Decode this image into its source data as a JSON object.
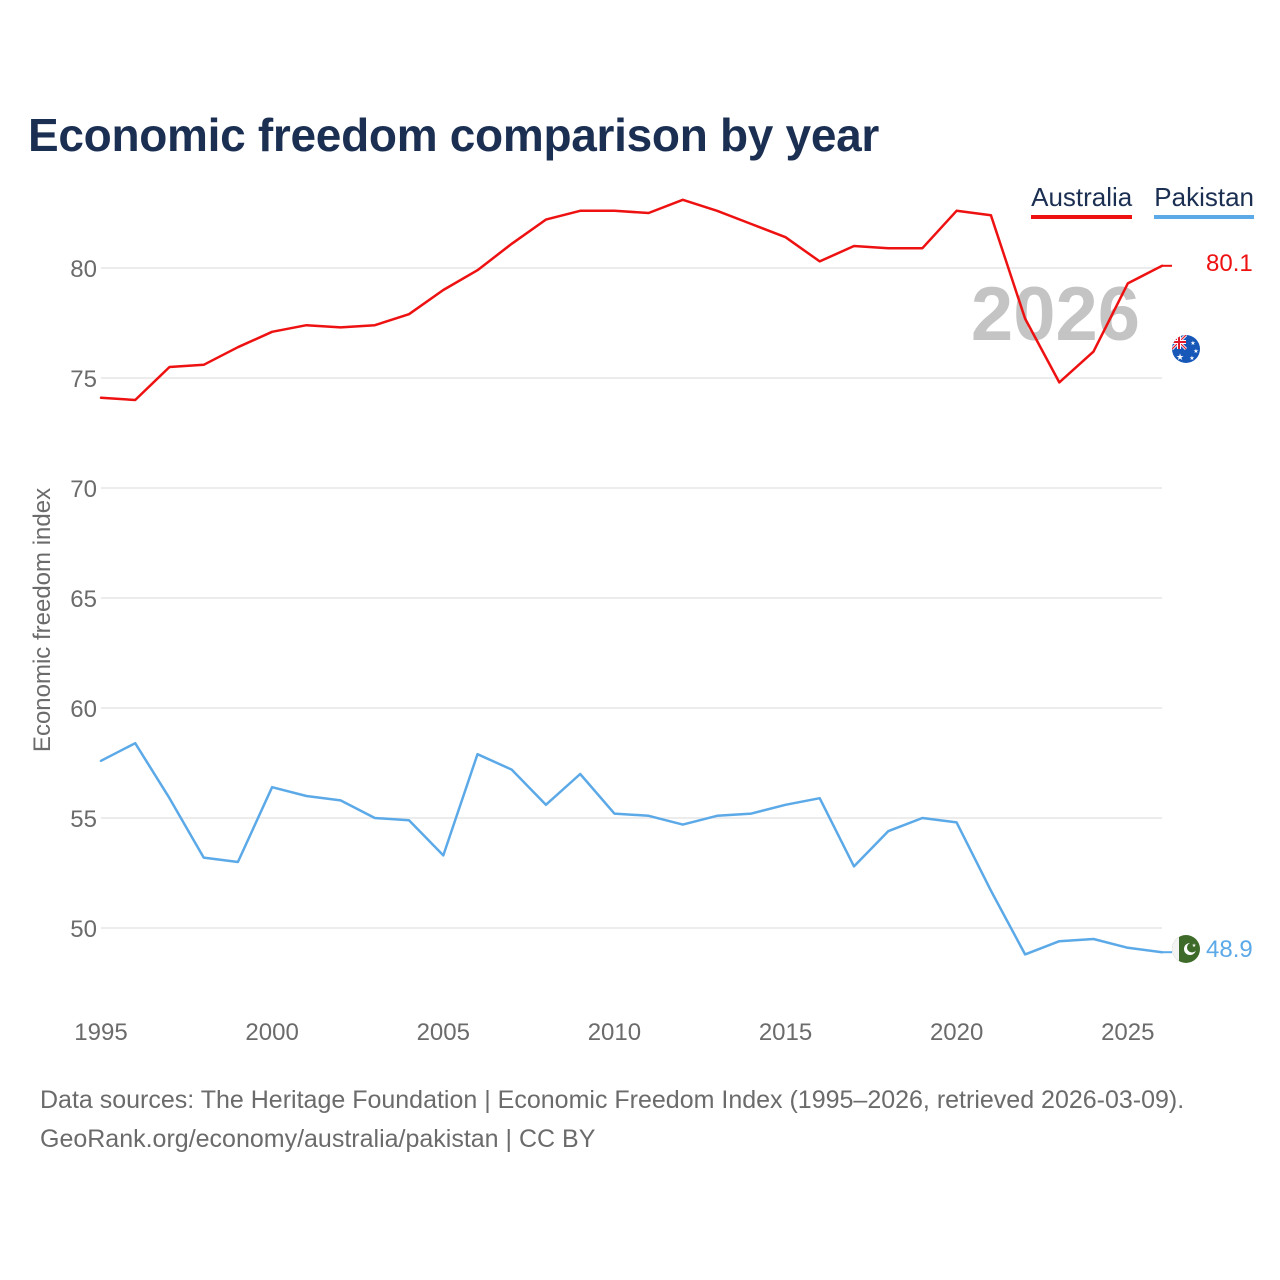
{
  "title": "Economic freedom comparison by year",
  "legend": {
    "items": [
      {
        "label": "Australia",
        "color": "#ee1111"
      },
      {
        "label": "Pakistan",
        "color": "#5ca9e8"
      }
    ]
  },
  "year_watermark": "2026",
  "footer": {
    "sources": "Data sources: The Heritage Foundation | Economic Freedom Index (1995–2026, retrieved 2026-03-09).",
    "credit": "GeoRank.org/economy/australia/pakistan | CC BY"
  },
  "chart_data": {
    "type": "line",
    "title": "Economic freedom comparison by year",
    "xlabel": "",
    "ylabel": "Economic freedom index",
    "xlim": [
      1995,
      2026
    ],
    "ylim": [
      45,
      85
    ],
    "grid": true,
    "legend_position": "top-right",
    "x": [
      1995,
      1996,
      1997,
      1998,
      1999,
      2000,
      2001,
      2002,
      2003,
      2004,
      2005,
      2006,
      2007,
      2008,
      2009,
      2010,
      2011,
      2012,
      2013,
      2014,
      2015,
      2016,
      2017,
      2018,
      2019,
      2020,
      2021,
      2022,
      2023,
      2024,
      2025,
      2026
    ],
    "x_ticks": [
      "1995",
      "2000",
      "2005",
      "2010",
      "2015",
      "2020",
      "2025"
    ],
    "y_ticks": [
      "50",
      "55",
      "60",
      "65",
      "70",
      "75",
      "80"
    ],
    "series": [
      {
        "name": "Australia",
        "color": "#ee1111",
        "end_label": "80.1",
        "values": [
          74.1,
          74.0,
          75.5,
          75.6,
          76.4,
          77.1,
          77.4,
          77.3,
          77.4,
          77.9,
          79.0,
          79.9,
          81.1,
          82.2,
          82.6,
          82.6,
          82.5,
          83.1,
          82.6,
          82.0,
          81.4,
          80.3,
          81.0,
          80.9,
          80.9,
          82.6,
          82.4,
          77.7,
          74.8,
          76.2,
          79.3,
          80.1
        ]
      },
      {
        "name": "Pakistan",
        "color": "#5ca9e8",
        "end_label": "48.9",
        "values": [
          57.6,
          58.4,
          55.9,
          53.2,
          53.0,
          56.4,
          56.0,
          55.8,
          55.0,
          54.9,
          53.3,
          57.9,
          57.2,
          55.6,
          57.0,
          55.2,
          55.1,
          54.7,
          55.1,
          55.2,
          55.6,
          55.9,
          52.8,
          54.4,
          55.0,
          54.8,
          51.7,
          48.8,
          49.4,
          49.5,
          49.1,
          48.9
        ]
      }
    ]
  }
}
